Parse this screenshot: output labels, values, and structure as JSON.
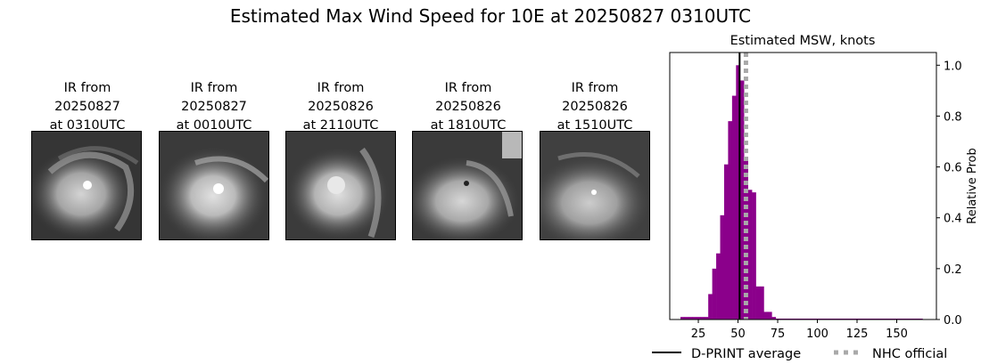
{
  "figure": {
    "title": "Estimated Max Wind Speed for 10E at 20250827 0310UTC"
  },
  "ir_panels": [
    {
      "label": "IR from\n20250827\nat 0310UTC"
    },
    {
      "label": "IR from\n20250827\nat 0010UTC"
    },
    {
      "label": "IR from\n20250826\nat 2110UTC"
    },
    {
      "label": "IR from\n20250826\nat 1810UTC"
    },
    {
      "label": "IR from\n20250826\nat 1510UTC"
    }
  ],
  "chart_data": {
    "type": "bar",
    "title": "Estimated MSW, knots",
    "xlabel": "",
    "ylabel": "Relative Prob",
    "xlim": [
      7,
      175
    ],
    "ylim": [
      0,
      1.05
    ],
    "x_ticks": [
      25,
      50,
      75,
      100,
      125,
      150
    ],
    "y_ticks": [
      0.0,
      0.2,
      0.4,
      0.6,
      0.8,
      1.0
    ],
    "y_tick_labels": [
      "0.0",
      "0.2",
      "0.4",
      "0.6",
      "0.8",
      "1.0"
    ],
    "y_axis_side": "right",
    "grid": false,
    "bar_color": "#8b008b",
    "bin_width": 2.5,
    "bins": [
      {
        "x": 15.0,
        "value": 0.01
      },
      {
        "x": 17.5,
        "value": 0.01
      },
      {
        "x": 20.0,
        "value": 0.01
      },
      {
        "x": 22.5,
        "value": 0.01
      },
      {
        "x": 25.0,
        "value": 0.01
      },
      {
        "x": 27.5,
        "value": 0.01
      },
      {
        "x": 30.0,
        "value": 0.01
      },
      {
        "x": 32.5,
        "value": 0.1
      },
      {
        "x": 35.0,
        "value": 0.2
      },
      {
        "x": 37.5,
        "value": 0.26
      },
      {
        "x": 40.0,
        "value": 0.41
      },
      {
        "x": 42.5,
        "value": 0.61
      },
      {
        "x": 45.0,
        "value": 0.78
      },
      {
        "x": 47.5,
        "value": 0.88
      },
      {
        "x": 50.0,
        "value": 1.0
      },
      {
        "x": 52.5,
        "value": 0.94
      },
      {
        "x": 55.0,
        "value": 0.64
      },
      {
        "x": 57.5,
        "value": 0.51
      },
      {
        "x": 60.0,
        "value": 0.5
      },
      {
        "x": 62.5,
        "value": 0.13
      },
      {
        "x": 65.0,
        "value": 0.13
      },
      {
        "x": 67.5,
        "value": 0.03
      },
      {
        "x": 70.0,
        "value": 0.03
      },
      {
        "x": 72.5,
        "value": 0.01
      },
      {
        "x": 75.0,
        "value": 0.003
      },
      {
        "x": 77.5,
        "value": 0.003
      },
      {
        "x": 80.0,
        "value": 0.003
      },
      {
        "x": 82.5,
        "value": 0.003
      },
      {
        "x": 85.0,
        "value": 0.003
      },
      {
        "x": 87.5,
        "value": 0.003
      },
      {
        "x": 90.0,
        "value": 0.003
      },
      {
        "x": 92.5,
        "value": 0.003
      },
      {
        "x": 95.0,
        "value": 0.003
      },
      {
        "x": 97.5,
        "value": 0.003
      },
      {
        "x": 100.0,
        "value": 0.003
      },
      {
        "x": 102.5,
        "value": 0.003
      },
      {
        "x": 105.0,
        "value": 0.003
      },
      {
        "x": 107.5,
        "value": 0.003
      },
      {
        "x": 110.0,
        "value": 0.003
      },
      {
        "x": 112.5,
        "value": 0.003
      },
      {
        "x": 115.0,
        "value": 0.003
      },
      {
        "x": 117.5,
        "value": 0.003
      },
      {
        "x": 120.0,
        "value": 0.003
      },
      {
        "x": 122.5,
        "value": 0.003
      },
      {
        "x": 125.0,
        "value": 0.003
      },
      {
        "x": 127.5,
        "value": 0.003
      },
      {
        "x": 130.0,
        "value": 0.003
      },
      {
        "x": 132.5,
        "value": 0.003
      },
      {
        "x": 135.0,
        "value": 0.003
      },
      {
        "x": 137.5,
        "value": 0.003
      },
      {
        "x": 140.0,
        "value": 0.003
      },
      {
        "x": 142.5,
        "value": 0.003
      },
      {
        "x": 145.0,
        "value": 0.003
      },
      {
        "x": 147.5,
        "value": 0.003
      },
      {
        "x": 150.0,
        "value": 0.003
      },
      {
        "x": 152.5,
        "value": 0.003
      },
      {
        "x": 155.0,
        "value": 0.003
      },
      {
        "x": 157.5,
        "value": 0.003
      },
      {
        "x": 160.0,
        "value": 0.003
      },
      {
        "x": 162.5,
        "value": 0.003
      },
      {
        "x": 165.0,
        "value": 0.003
      }
    ],
    "reference_lines": [
      {
        "name": "D-PRINT average",
        "x": 51,
        "color": "#000000",
        "style": "solid"
      },
      {
        "name": "NHC official",
        "x": 55,
        "color": "#a9a9a9",
        "style": "dotted"
      }
    ],
    "legend": {
      "placement": "bottom",
      "entries": [
        "D-PRINT average",
        "NHC official"
      ]
    }
  }
}
